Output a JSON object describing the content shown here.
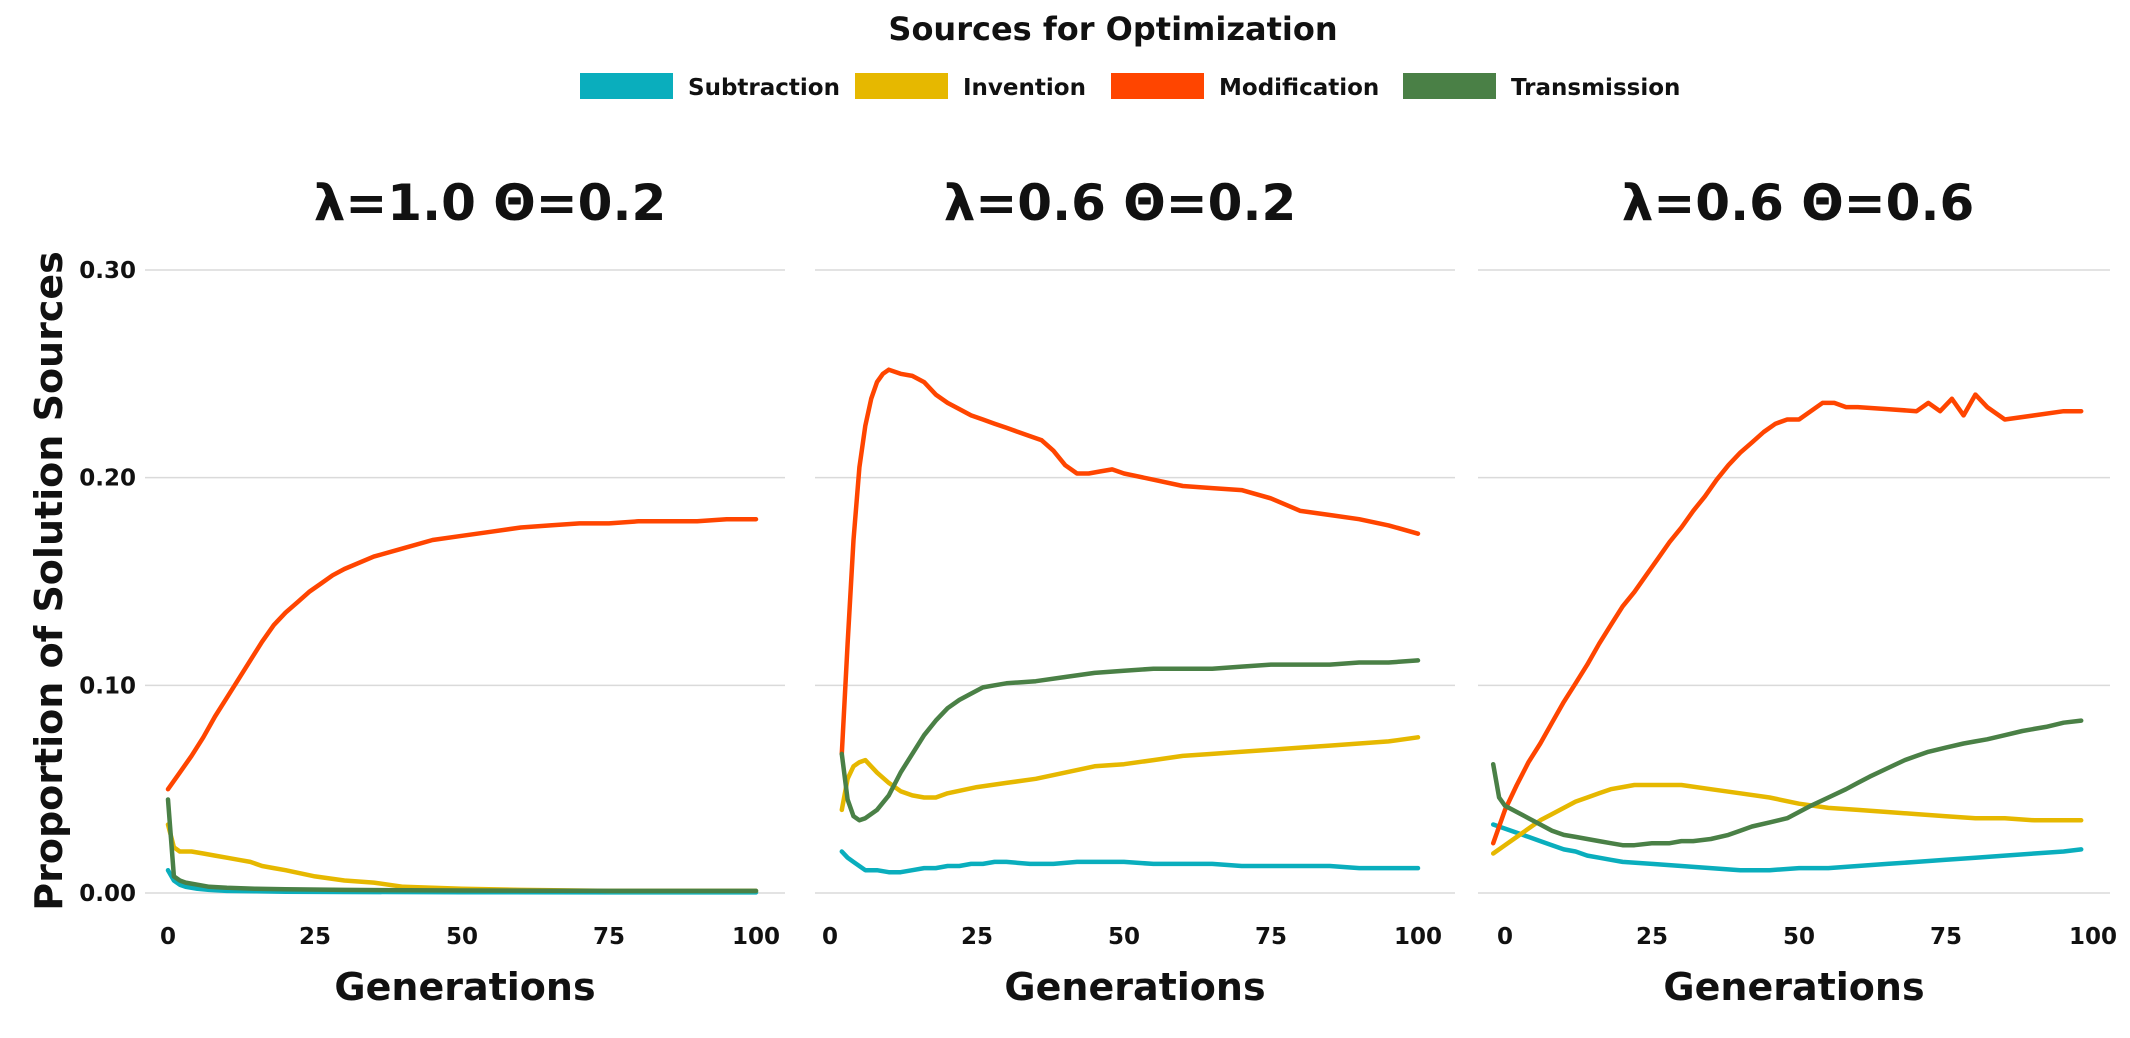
{
  "figure": {
    "legend_title": "Sources for Optimization",
    "ylabel": "Proportion of Solution Sources"
  },
  "chart_data": [
    {
      "type": "line",
      "title": "λ=1.0   Θ=0.2",
      "xlabel": "Generations",
      "ylabel": "Proportion of Solution Sources",
      "xlim": [
        0,
        100
      ],
      "ylim": [
        0,
        0.3
      ],
      "xticks": [
        0,
        25,
        50,
        75,
        100
      ],
      "yticks": [
        0.0,
        0.1,
        0.2,
        0.3
      ],
      "xtick_labels": [
        "0",
        "25",
        "50",
        "75",
        "100"
      ],
      "ytick_labels": [
        "0.00",
        "0.10",
        "0.20",
        "0.30"
      ],
      "grid": true,
      "legend_position": "top-center",
      "series": [
        {
          "name": "Subtraction",
          "color": "#0aaebd",
          "x": [
            0,
            1,
            2,
            3,
            5,
            7,
            10,
            15,
            20,
            30,
            50,
            75,
            100
          ],
          "values": [
            0.011,
            0.006,
            0.004,
            0.003,
            0.002,
            0.0015,
            0.001,
            0.0008,
            0.0006,
            0.0005,
            0.0004,
            0.0003,
            0.0003
          ]
        },
        {
          "name": "Invention",
          "color": "#e6b800",
          "x": [
            0,
            1,
            2,
            4,
            6,
            8,
            10,
            12,
            14,
            16,
            18,
            20,
            25,
            30,
            35,
            40,
            50,
            60,
            75,
            100
          ],
          "values": [
            0.033,
            0.022,
            0.02,
            0.02,
            0.019,
            0.018,
            0.017,
            0.016,
            0.015,
            0.013,
            0.012,
            0.011,
            0.008,
            0.006,
            0.005,
            0.003,
            0.002,
            0.0015,
            0.001,
            0.001
          ]
        },
        {
          "name": "Modification",
          "color": "#ff4500",
          "x": [
            0,
            2,
            4,
            6,
            8,
            10,
            12,
            14,
            16,
            18,
            20,
            22,
            24,
            26,
            28,
            30,
            35,
            40,
            45,
            50,
            55,
            60,
            65,
            70,
            75,
            80,
            85,
            90,
            95,
            100
          ],
          "values": [
            0.05,
            0.058,
            0.066,
            0.075,
            0.085,
            0.094,
            0.103,
            0.112,
            0.121,
            0.129,
            0.135,
            0.14,
            0.145,
            0.149,
            0.153,
            0.156,
            0.162,
            0.166,
            0.17,
            0.172,
            0.174,
            0.176,
            0.177,
            0.178,
            0.178,
            0.179,
            0.179,
            0.179,
            0.18,
            0.18
          ]
        },
        {
          "name": "Transmission",
          "color": "#4a8046",
          "x": [
            0,
            1,
            2,
            3,
            5,
            7,
            10,
            15,
            20,
            30,
            50,
            75,
            100
          ],
          "values": [
            0.045,
            0.008,
            0.006,
            0.005,
            0.004,
            0.003,
            0.0025,
            0.002,
            0.0018,
            0.0015,
            0.0012,
            0.001,
            0.001
          ]
        }
      ]
    },
    {
      "type": "line",
      "title": "λ=0.6   Θ=0.2",
      "xlabel": "Generations",
      "ylabel": "Proportion of Solution Sources",
      "xlim": [
        0,
        100
      ],
      "ylim": [
        0,
        0.3
      ],
      "xticks": [
        0,
        25,
        50,
        75,
        100
      ],
      "yticks": [
        0.0,
        0.1,
        0.2,
        0.3
      ],
      "xtick_labels": [
        "0",
        "25",
        "50",
        "75",
        "100"
      ],
      "ytick_labels": [
        "0.00",
        "0.10",
        "0.20",
        "0.30"
      ],
      "grid": true,
      "legend_position": "top-center",
      "series": [
        {
          "name": "Subtraction",
          "color": "#0aaebd",
          "x": [
            2,
            3,
            4,
            6,
            8,
            10,
            12,
            14,
            16,
            18,
            20,
            22,
            24,
            26,
            28,
            30,
            34,
            38,
            42,
            46,
            50,
            55,
            60,
            65,
            70,
            75,
            80,
            85,
            90,
            95,
            100
          ],
          "values": [
            0.02,
            0.017,
            0.015,
            0.011,
            0.011,
            0.01,
            0.01,
            0.011,
            0.012,
            0.012,
            0.013,
            0.013,
            0.014,
            0.014,
            0.015,
            0.015,
            0.014,
            0.014,
            0.015,
            0.015,
            0.015,
            0.014,
            0.014,
            0.014,
            0.013,
            0.013,
            0.013,
            0.013,
            0.012,
            0.012,
            0.012
          ]
        },
        {
          "name": "Invention",
          "color": "#e6b800",
          "x": [
            2,
            3,
            4,
            5,
            6,
            8,
            10,
            12,
            14,
            16,
            18,
            20,
            25,
            30,
            35,
            40,
            45,
            50,
            55,
            60,
            65,
            70,
            75,
            80,
            85,
            90,
            95,
            100
          ],
          "values": [
            0.04,
            0.055,
            0.061,
            0.063,
            0.064,
            0.058,
            0.053,
            0.049,
            0.047,
            0.046,
            0.046,
            0.048,
            0.051,
            0.053,
            0.055,
            0.058,
            0.061,
            0.062,
            0.064,
            0.066,
            0.067,
            0.068,
            0.069,
            0.07,
            0.071,
            0.072,
            0.073,
            0.075
          ]
        },
        {
          "name": "Modification",
          "color": "#ff4500",
          "x": [
            2,
            3,
            4,
            5,
            6,
            7,
            8,
            9,
            10,
            12,
            14,
            16,
            18,
            20,
            22,
            24,
            26,
            28,
            30,
            32,
            34,
            36,
            38,
            40,
            42,
            44,
            46,
            48,
            50,
            55,
            60,
            65,
            70,
            75,
            80,
            85,
            90,
            95,
            100
          ],
          "values": [
            0.067,
            0.12,
            0.17,
            0.205,
            0.225,
            0.238,
            0.246,
            0.25,
            0.252,
            0.25,
            0.249,
            0.246,
            0.24,
            0.236,
            0.233,
            0.23,
            0.228,
            0.226,
            0.224,
            0.222,
            0.22,
            0.218,
            0.213,
            0.206,
            0.202,
            0.202,
            0.203,
            0.204,
            0.202,
            0.199,
            0.196,
            0.195,
            0.194,
            0.19,
            0.184,
            0.182,
            0.18,
            0.177,
            0.173
          ]
        },
        {
          "name": "Transmission",
          "color": "#4a8046",
          "x": [
            2,
            3,
            4,
            5,
            6,
            8,
            10,
            12,
            14,
            16,
            18,
            20,
            22,
            24,
            26,
            28,
            30,
            35,
            40,
            45,
            50,
            55,
            60,
            65,
            70,
            75,
            80,
            85,
            90,
            95,
            100
          ],
          "values": [
            0.067,
            0.045,
            0.037,
            0.035,
            0.036,
            0.04,
            0.047,
            0.058,
            0.067,
            0.076,
            0.083,
            0.089,
            0.093,
            0.096,
            0.099,
            0.1,
            0.101,
            0.102,
            0.104,
            0.106,
            0.107,
            0.108,
            0.108,
            0.108,
            0.109,
            0.11,
            0.11,
            0.11,
            0.111,
            0.111,
            0.112
          ]
        }
      ]
    },
    {
      "type": "line",
      "title": "λ=0.6   Θ=0.6",
      "xlabel": "Generations",
      "ylabel": "Proportion of Solution Sources",
      "xlim": [
        0,
        100
      ],
      "ylim": [
        0,
        0.3
      ],
      "xticks": [
        0,
        25,
        50,
        75,
        100
      ],
      "yticks": [
        0.0,
        0.1,
        0.2,
        0.3
      ],
      "xtick_labels": [
        "0",
        "25",
        "50",
        "75",
        "100"
      ],
      "ytick_labels": [
        "0.00",
        "0.10",
        "0.20",
        "0.30"
      ],
      "grid": true,
      "legend_position": "top-center",
      "series": [
        {
          "name": "Subtraction",
          "color": "#0aaebd",
          "x": [
            -2,
            0,
            2,
            4,
            6,
            8,
            10,
            12,
            14,
            16,
            18,
            20,
            25,
            30,
            35,
            40,
            45,
            50,
            55,
            60,
            65,
            70,
            75,
            80,
            85,
            90,
            95,
            98
          ],
          "values": [
            0.033,
            0.031,
            0.029,
            0.027,
            0.025,
            0.023,
            0.021,
            0.02,
            0.018,
            0.017,
            0.016,
            0.015,
            0.014,
            0.013,
            0.012,
            0.011,
            0.011,
            0.012,
            0.012,
            0.013,
            0.014,
            0.015,
            0.016,
            0.017,
            0.018,
            0.019,
            0.02,
            0.021
          ]
        },
        {
          "name": "Invention",
          "color": "#e6b800",
          "x": [
            -2,
            0,
            2,
            4,
            6,
            8,
            10,
            12,
            14,
            16,
            18,
            20,
            22,
            25,
            28,
            30,
            35,
            40,
            45,
            50,
            55,
            60,
            65,
            70,
            75,
            80,
            85,
            90,
            95,
            98
          ],
          "values": [
            0.019,
            0.023,
            0.027,
            0.031,
            0.035,
            0.038,
            0.041,
            0.044,
            0.046,
            0.048,
            0.05,
            0.051,
            0.052,
            0.052,
            0.052,
            0.052,
            0.05,
            0.048,
            0.046,
            0.043,
            0.041,
            0.04,
            0.039,
            0.038,
            0.037,
            0.036,
            0.036,
            0.035,
            0.035,
            0.035
          ]
        },
        {
          "name": "Modification",
          "color": "#ff4500",
          "x": [
            -2,
            0,
            2,
            4,
            6,
            8,
            10,
            12,
            14,
            16,
            18,
            20,
            22,
            24,
            26,
            28,
            30,
            32,
            34,
            36,
            38,
            40,
            42,
            44,
            46,
            48,
            50,
            52,
            54,
            56,
            58,
            60,
            65,
            70,
            72,
            74,
            76,
            78,
            80,
            82,
            85,
            90,
            95,
            98
          ],
          "values": [
            0.024,
            0.04,
            0.052,
            0.063,
            0.072,
            0.082,
            0.092,
            0.101,
            0.11,
            0.12,
            0.129,
            0.138,
            0.145,
            0.153,
            0.161,
            0.169,
            0.176,
            0.184,
            0.191,
            0.199,
            0.206,
            0.212,
            0.217,
            0.222,
            0.226,
            0.228,
            0.228,
            0.232,
            0.236,
            0.236,
            0.234,
            0.234,
            0.233,
            0.232,
            0.236,
            0.232,
            0.238,
            0.23,
            0.24,
            0.234,
            0.228,
            0.23,
            0.232,
            0.232
          ]
        },
        {
          "name": "Transmission",
          "color": "#4a8046",
          "x": [
            -2,
            -1,
            0,
            2,
            4,
            6,
            8,
            10,
            12,
            14,
            16,
            18,
            20,
            22,
            25,
            28,
            30,
            32,
            35,
            38,
            40,
            42,
            45,
            48,
            50,
            52,
            55,
            58,
            60,
            62,
            65,
            68,
            70,
            72,
            75,
            78,
            80,
            82,
            85,
            88,
            90,
            92,
            95,
            98
          ],
          "values": [
            0.062,
            0.046,
            0.042,
            0.039,
            0.036,
            0.033,
            0.03,
            0.028,
            0.027,
            0.026,
            0.025,
            0.024,
            0.023,
            0.023,
            0.024,
            0.024,
            0.025,
            0.025,
            0.026,
            0.028,
            0.03,
            0.032,
            0.034,
            0.036,
            0.039,
            0.042,
            0.046,
            0.05,
            0.053,
            0.056,
            0.06,
            0.064,
            0.066,
            0.068,
            0.07,
            0.072,
            0.073,
            0.074,
            0.076,
            0.078,
            0.079,
            0.08,
            0.082,
            0.083
          ]
        }
      ]
    }
  ]
}
